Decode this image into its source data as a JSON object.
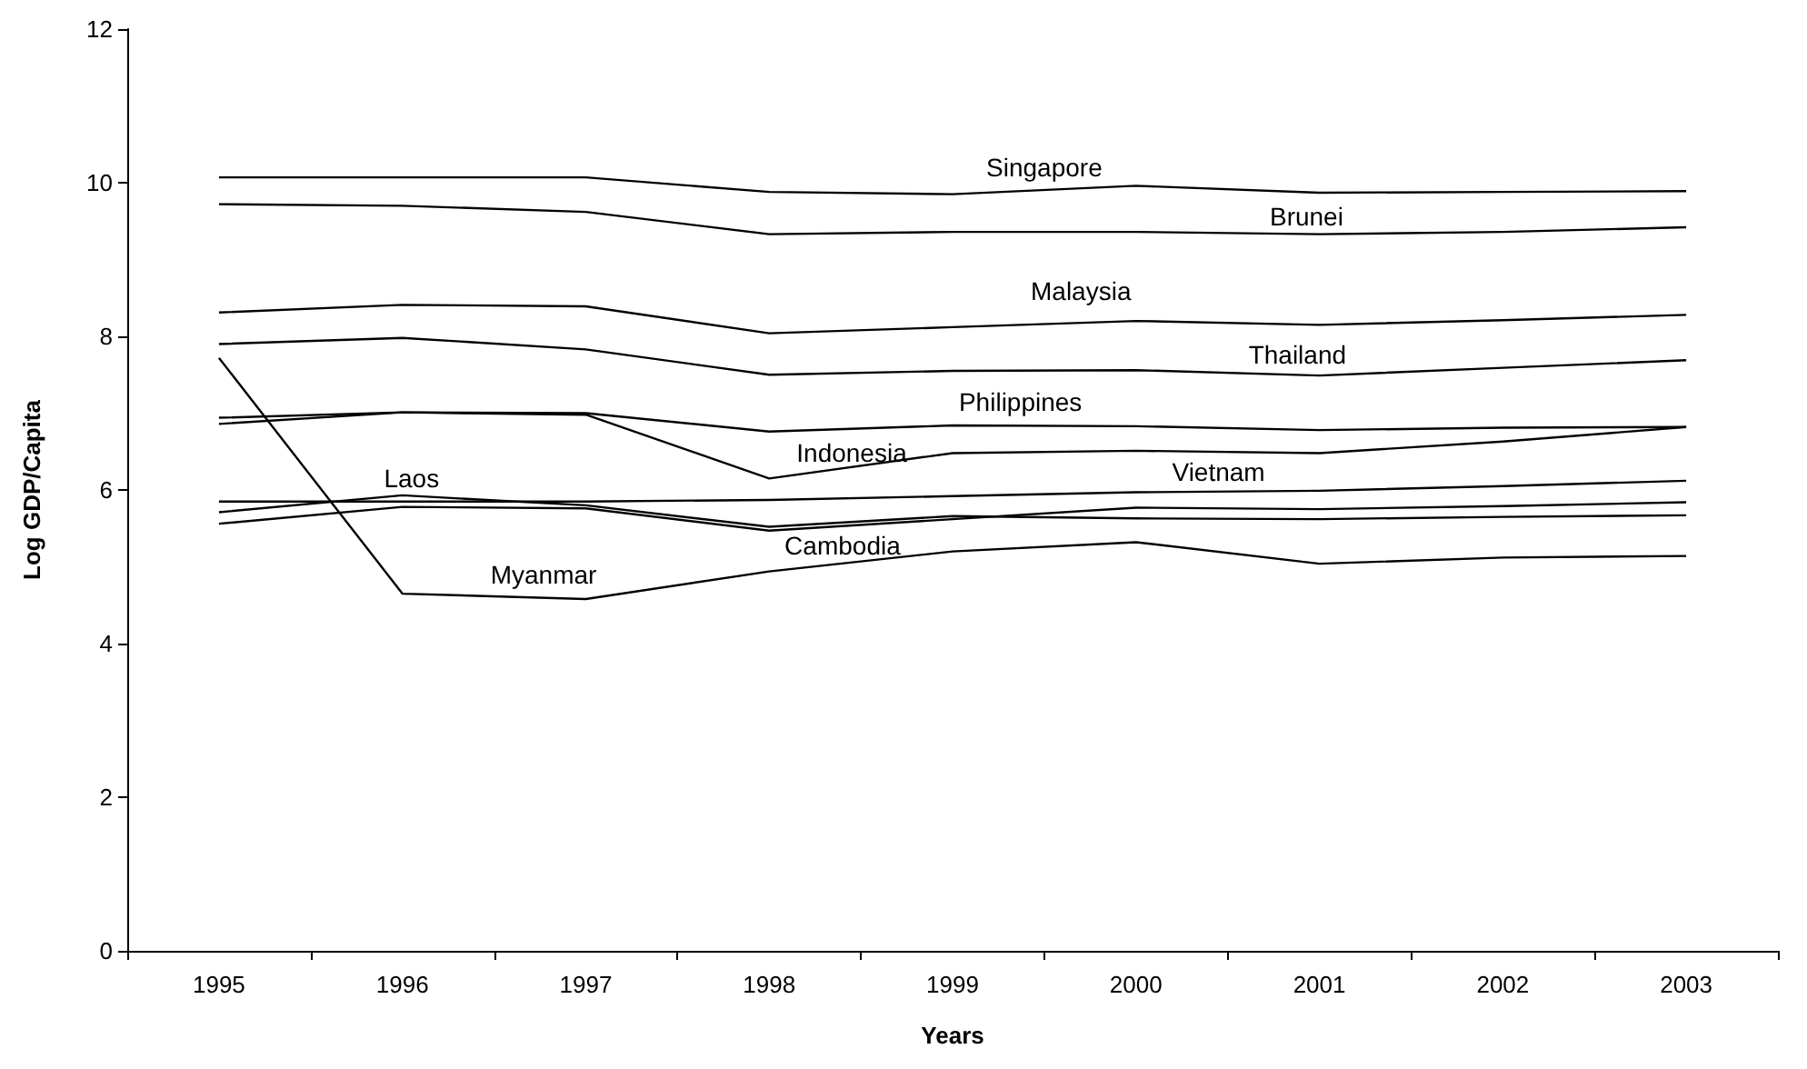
{
  "chart_data": {
    "type": "line",
    "xlabel": "Years",
    "ylabel": "Log GDP/Capita",
    "categories": [
      "1995",
      "1996",
      "1997",
      "1998",
      "1999",
      "2000",
      "2001",
      "2002",
      "2003"
    ],
    "ylim": [
      0,
      12
    ],
    "yticks": [
      0,
      2,
      4,
      6,
      8,
      10,
      12
    ],
    "grid": false,
    "legend": false,
    "marker": "none",
    "line_style": "solid",
    "series": [
      {
        "name": "Singapore",
        "color": "#000000",
        "values": [
          10.07,
          10.07,
          10.07,
          9.88,
          9.85,
          9.96,
          9.87,
          9.88,
          9.89
        ]
      },
      {
        "name": "Brunei",
        "color": "#000000",
        "values": [
          9.72,
          9.7,
          9.62,
          9.33,
          9.36,
          9.36,
          9.33,
          9.36,
          9.42
        ]
      },
      {
        "name": "Malaysia",
        "color": "#000000",
        "values": [
          8.31,
          8.41,
          8.39,
          8.04,
          8.12,
          8.2,
          8.15,
          8.21,
          8.28
        ]
      },
      {
        "name": "Thailand",
        "color": "#000000",
        "values": [
          7.9,
          7.98,
          7.83,
          7.5,
          7.55,
          7.56,
          7.49,
          7.59,
          7.69
        ]
      },
      {
        "name": "Philippines",
        "color": "#000000",
        "values": [
          6.94,
          7.01,
          7.0,
          6.76,
          6.84,
          6.83,
          6.78,
          6.81,
          6.82
        ]
      },
      {
        "name": "Indonesia",
        "color": "#000000",
        "values": [
          6.86,
          7.01,
          6.98,
          6.15,
          6.48,
          6.51,
          6.48,
          6.63,
          6.82
        ]
      },
      {
        "name": "Vietnam",
        "color": "#000000",
        "values": [
          5.85,
          5.85,
          5.85,
          5.87,
          5.92,
          5.97,
          5.99,
          6.05,
          6.12
        ]
      },
      {
        "name": "Laos",
        "color": "#000000",
        "values": [
          5.71,
          5.93,
          5.8,
          5.52,
          5.66,
          5.63,
          5.62,
          5.65,
          5.67
        ]
      },
      {
        "name": "Cambodia",
        "color": "#000000",
        "values": [
          5.56,
          5.78,
          5.76,
          5.47,
          5.62,
          5.77,
          5.75,
          5.79,
          5.84
        ]
      },
      {
        "name": "Myanmar",
        "color": "#000000",
        "values": [
          7.72,
          4.65,
          4.58,
          4.94,
          5.2,
          5.32,
          5.04,
          5.12,
          5.14
        ]
      }
    ]
  }
}
